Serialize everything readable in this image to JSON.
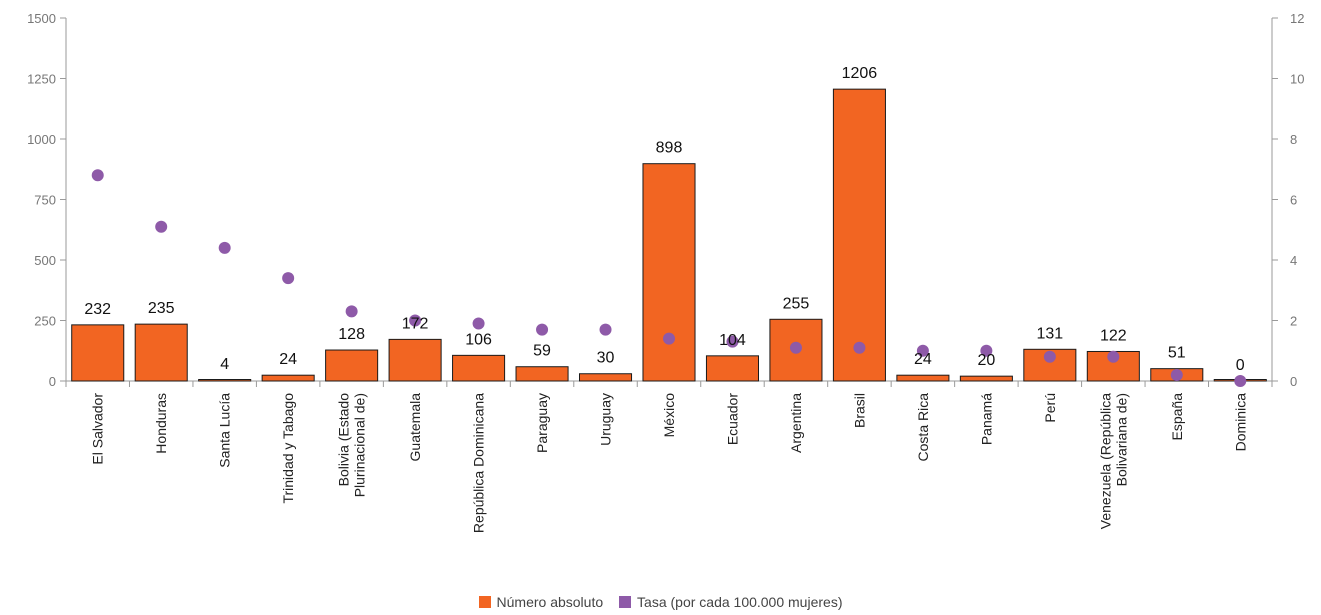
{
  "chart_data": {
    "type": "bar",
    "categories": [
      "El Salvador",
      "Honduras",
      "Santa Lucía",
      "Trinidad y Tabago",
      "Bolivia (Estado Plurinacional de)",
      "Guatemala",
      "República Dominicana",
      "Paraguay",
      "Uruguay",
      "México",
      "Ecuador",
      "Argentina",
      "Brasil",
      "Costa Rica",
      "Panamá",
      "Perú",
      "Venezuela (República Bolivariana de)",
      "España",
      "Dominica"
    ],
    "category_lines": [
      [
        "El Salvador"
      ],
      [
        "Honduras"
      ],
      [
        "Santa Lucía"
      ],
      [
        "Trinidad y Tabago"
      ],
      [
        "Bolivia (Estado",
        "Plurinacional de)"
      ],
      [
        "Guatemala"
      ],
      [
        "República Dominicana"
      ],
      [
        "Paraguay"
      ],
      [
        "Uruguay"
      ],
      [
        "México"
      ],
      [
        "Ecuador"
      ],
      [
        "Argentina"
      ],
      [
        "Brasil"
      ],
      [
        "Costa Rica"
      ],
      [
        "Panamá"
      ],
      [
        "Perú"
      ],
      [
        "Venezuela (República",
        "Bolivariana de)"
      ],
      [
        "España"
      ],
      [
        "Dominica"
      ]
    ],
    "series": [
      {
        "name": "Número absoluto",
        "type": "bar",
        "axis": "left",
        "color": "#f26522",
        "values": [
          232,
          235,
          4,
          24,
          128,
          172,
          106,
          59,
          30,
          898,
          104,
          255,
          1206,
          24,
          20,
          131,
          122,
          51,
          0
        ],
        "labels": [
          "232",
          "235",
          "4",
          "24",
          "128",
          "172",
          "106",
          "59",
          "30",
          "898",
          "104",
          "255",
          "1206",
          "24",
          "20",
          "131",
          "122",
          "51",
          "0"
        ]
      },
      {
        "name": "Tasa (por cada 100.000 mujeres)",
        "type": "scatter",
        "axis": "right",
        "color": "#8e5aa8",
        "values": [
          6.8,
          5.1,
          4.4,
          3.4,
          2.3,
          2.0,
          1.9,
          1.7,
          1.7,
          1.4,
          1.3,
          1.1,
          1.1,
          1.0,
          1.0,
          0.8,
          0.8,
          0.2,
          0.0
        ]
      }
    ],
    "ylim_left": [
      0,
      1500
    ],
    "yticks_left": [
      "0",
      "250",
      "500",
      "750",
      "1000",
      "1250",
      "1500"
    ],
    "ylim_right": [
      0,
      12
    ],
    "yticks_right": [
      "0",
      "2",
      "4",
      "6",
      "8",
      "10",
      "12"
    ],
    "grid": false,
    "legend_position": "bottom-center"
  }
}
